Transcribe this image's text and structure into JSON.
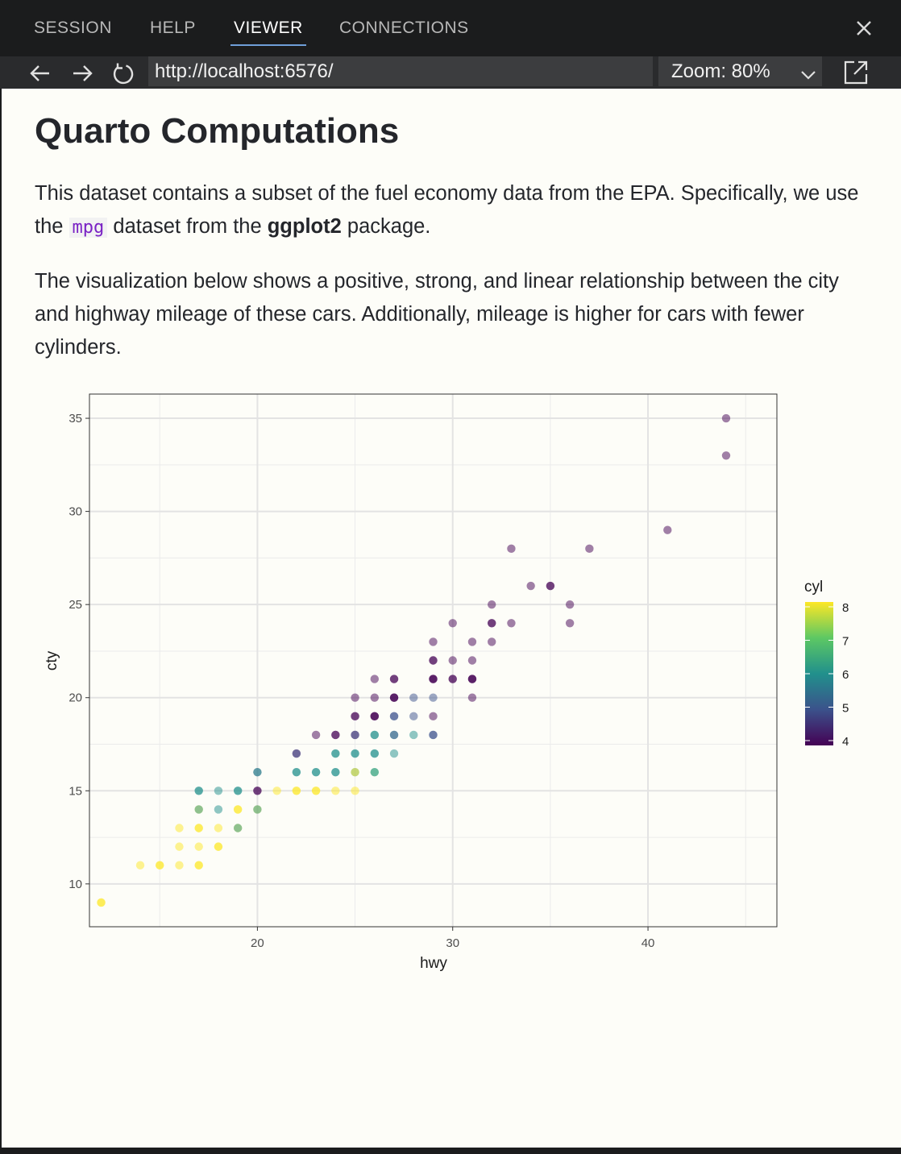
{
  "tabs": [
    {
      "label": "SESSION",
      "active": false
    },
    {
      "label": "HELP",
      "active": false
    },
    {
      "label": "VIEWER",
      "active": true
    },
    {
      "label": "CONNECTIONS",
      "active": false
    }
  ],
  "toolbar": {
    "url": "http://localhost:6576/",
    "zoom": "Zoom: 80%",
    "icons": [
      "back-arrow-icon",
      "forward-arrow-icon",
      "refresh-icon",
      "popout-icon"
    ]
  },
  "page": {
    "title": "Quarto Computations",
    "p1_before": "This dataset contains a subset of the fuel economy data from the EPA. Specifically, we use the ",
    "p1_code": "mpg",
    "p1_mid": " dataset from the ",
    "p1_bold": "ggplot2",
    "p1_after": " package.",
    "p2": "The visualization below shows a positive, strong, and linear relationship between the city and highway mileage of these cars. Additionally, mileage is higher for cars with fewer cylinders."
  },
  "chart_data": {
    "type": "scatter",
    "xlabel": "hwy",
    "ylabel": "cty",
    "xlim": [
      11.4,
      46.6
    ],
    "ylim": [
      7.7,
      36.3
    ],
    "xticks": [
      20,
      30,
      40
    ],
    "yticks": [
      10,
      15,
      20,
      25,
      30,
      35
    ],
    "grid": true,
    "legend": {
      "title": "cyl",
      "ticks": [
        4,
        5,
        6,
        7,
        8
      ],
      "position": "right",
      "colormap": "viridis"
    },
    "colors": {
      "4": "#440154",
      "5": "#3b528b",
      "6": "#21908c",
      "7": "#5dc863",
      "8": "#fde725"
    },
    "points": [
      {
        "x": 44,
        "y": 35,
        "cyl": 4
      },
      {
        "x": 44,
        "y": 33,
        "cyl": 4
      },
      {
        "x": 41,
        "y": 29,
        "cyl": 4
      },
      {
        "x": 33,
        "y": 28,
        "cyl": 4
      },
      {
        "x": 37,
        "y": 28,
        "cyl": 4
      },
      {
        "x": 34,
        "y": 26,
        "cyl": 4
      },
      {
        "x": 35,
        "y": 26,
        "cyl": 4
      },
      {
        "x": 35,
        "y": 26,
        "cyl": 4
      },
      {
        "x": 32,
        "y": 25,
        "cyl": 4
      },
      {
        "x": 36,
        "y": 25,
        "cyl": 4
      },
      {
        "x": 30,
        "y": 24,
        "cyl": 4
      },
      {
        "x": 32,
        "y": 24,
        "cyl": 4
      },
      {
        "x": 32,
        "y": 24,
        "cyl": 4
      },
      {
        "x": 33,
        "y": 24,
        "cyl": 4
      },
      {
        "x": 36,
        "y": 24,
        "cyl": 4
      },
      {
        "x": 29,
        "y": 23,
        "cyl": 4
      },
      {
        "x": 31,
        "y": 23,
        "cyl": 4
      },
      {
        "x": 32,
        "y": 23,
        "cyl": 4
      },
      {
        "x": 29,
        "y": 22,
        "cyl": 4
      },
      {
        "x": 29,
        "y": 22,
        "cyl": 4
      },
      {
        "x": 30,
        "y": 22,
        "cyl": 4
      },
      {
        "x": 31,
        "y": 22,
        "cyl": 4
      },
      {
        "x": 26,
        "y": 21,
        "cyl": 4
      },
      {
        "x": 27,
        "y": 21,
        "cyl": 4
      },
      {
        "x": 27,
        "y": 21,
        "cyl": 4
      },
      {
        "x": 29,
        "y": 21,
        "cyl": 4
      },
      {
        "x": 29,
        "y": 21,
        "cyl": 4
      },
      {
        "x": 29,
        "y": 21,
        "cyl": 4
      },
      {
        "x": 30,
        "y": 21,
        "cyl": 4
      },
      {
        "x": 30,
        "y": 21,
        "cyl": 4
      },
      {
        "x": 31,
        "y": 21,
        "cyl": 4
      },
      {
        "x": 31,
        "y": 21,
        "cyl": 4
      },
      {
        "x": 31,
        "y": 21,
        "cyl": 4
      },
      {
        "x": 25,
        "y": 20,
        "cyl": 4
      },
      {
        "x": 26,
        "y": 20,
        "cyl": 4
      },
      {
        "x": 27,
        "y": 20,
        "cyl": 4
      },
      {
        "x": 27,
        "y": 20,
        "cyl": 4
      },
      {
        "x": 27,
        "y": 20,
        "cyl": 4
      },
      {
        "x": 28,
        "y": 20,
        "cyl": 5
      },
      {
        "x": 29,
        "y": 20,
        "cyl": 5
      },
      {
        "x": 31,
        "y": 20,
        "cyl": 4
      },
      {
        "x": 25,
        "y": 19,
        "cyl": 4
      },
      {
        "x": 25,
        "y": 19,
        "cyl": 4
      },
      {
        "x": 26,
        "y": 19,
        "cyl": 4
      },
      {
        "x": 26,
        "y": 19,
        "cyl": 4
      },
      {
        "x": 26,
        "y": 19,
        "cyl": 4
      },
      {
        "x": 27,
        "y": 19,
        "cyl": 5
      },
      {
        "x": 27,
        "y": 19,
        "cyl": 5
      },
      {
        "x": 28,
        "y": 19,
        "cyl": 5
      },
      {
        "x": 29,
        "y": 19,
        "cyl": 4
      },
      {
        "x": 23,
        "y": 18,
        "cyl": 4
      },
      {
        "x": 24,
        "y": 18,
        "cyl": 4
      },
      {
        "x": 24,
        "y": 18,
        "cyl": 4
      },
      {
        "x": 25,
        "y": 18,
        "cyl": 4
      },
      {
        "x": 25,
        "y": 18,
        "cyl": 5
      },
      {
        "x": 26,
        "y": 18,
        "cyl": 6
      },
      {
        "x": 26,
        "y": 18,
        "cyl": 6
      },
      {
        "x": 27,
        "y": 18,
        "cyl": 6
      },
      {
        "x": 27,
        "y": 18,
        "cyl": 5
      },
      {
        "x": 28,
        "y": 18,
        "cyl": 6
      },
      {
        "x": 29,
        "y": 18,
        "cyl": 5
      },
      {
        "x": 29,
        "y": 18,
        "cyl": 5
      },
      {
        "x": 22,
        "y": 17,
        "cyl": 4
      },
      {
        "x": 22,
        "y": 17,
        "cyl": 5
      },
      {
        "x": 24,
        "y": 17,
        "cyl": 6
      },
      {
        "x": 24,
        "y": 17,
        "cyl": 6
      },
      {
        "x": 25,
        "y": 17,
        "cyl": 6
      },
      {
        "x": 25,
        "y": 17,
        "cyl": 6
      },
      {
        "x": 26,
        "y": 17,
        "cyl": 6
      },
      {
        "x": 26,
        "y": 17,
        "cyl": 6
      },
      {
        "x": 27,
        "y": 17,
        "cyl": 6
      },
      {
        "x": 20,
        "y": 16,
        "cyl": 5
      },
      {
        "x": 20,
        "y": 16,
        "cyl": 6
      },
      {
        "x": 22,
        "y": 16,
        "cyl": 6
      },
      {
        "x": 22,
        "y": 16,
        "cyl": 6
      },
      {
        "x": 23,
        "y": 16,
        "cyl": 6
      },
      {
        "x": 23,
        "y": 16,
        "cyl": 6
      },
      {
        "x": 24,
        "y": 16,
        "cyl": 6
      },
      {
        "x": 24,
        "y": 16,
        "cyl": 6
      },
      {
        "x": 25,
        "y": 16,
        "cyl": 6
      },
      {
        "x": 25,
        "y": 16,
        "cyl": 8
      },
      {
        "x": 26,
        "y": 16,
        "cyl": 7
      },
      {
        "x": 26,
        "y": 16,
        "cyl": 6
      },
      {
        "x": 17,
        "y": 15,
        "cyl": 6
      },
      {
        "x": 17,
        "y": 15,
        "cyl": 6
      },
      {
        "x": 18,
        "y": 15,
        "cyl": 6
      },
      {
        "x": 19,
        "y": 15,
        "cyl": 6
      },
      {
        "x": 19,
        "y": 15,
        "cyl": 6
      },
      {
        "x": 20,
        "y": 15,
        "cyl": 4
      },
      {
        "x": 20,
        "y": 15,
        "cyl": 4
      },
      {
        "x": 21,
        "y": 15,
        "cyl": 8
      },
      {
        "x": 22,
        "y": 15,
        "cyl": 8
      },
      {
        "x": 22,
        "y": 15,
        "cyl": 8
      },
      {
        "x": 23,
        "y": 15,
        "cyl": 8
      },
      {
        "x": 23,
        "y": 15,
        "cyl": 8
      },
      {
        "x": 24,
        "y": 15,
        "cyl": 8
      },
      {
        "x": 25,
        "y": 15,
        "cyl": 8
      },
      {
        "x": 17,
        "y": 14,
        "cyl": 8
      },
      {
        "x": 17,
        "y": 14,
        "cyl": 6
      },
      {
        "x": 18,
        "y": 14,
        "cyl": 6
      },
      {
        "x": 19,
        "y": 14,
        "cyl": 8
      },
      {
        "x": 19,
        "y": 14,
        "cyl": 8
      },
      {
        "x": 20,
        "y": 14,
        "cyl": 8
      },
      {
        "x": 20,
        "y": 14,
        "cyl": 6
      },
      {
        "x": 16,
        "y": 13,
        "cyl": 8
      },
      {
        "x": 17,
        "y": 13,
        "cyl": 8
      },
      {
        "x": 17,
        "y": 13,
        "cyl": 8
      },
      {
        "x": 18,
        "y": 13,
        "cyl": 8
      },
      {
        "x": 19,
        "y": 13,
        "cyl": 8
      },
      {
        "x": 19,
        "y": 13,
        "cyl": 6
      },
      {
        "x": 16,
        "y": 12,
        "cyl": 8
      },
      {
        "x": 17,
        "y": 12,
        "cyl": 8
      },
      {
        "x": 18,
        "y": 12,
        "cyl": 8
      },
      {
        "x": 18,
        "y": 12,
        "cyl": 8
      },
      {
        "x": 14,
        "y": 11,
        "cyl": 8
      },
      {
        "x": 15,
        "y": 11,
        "cyl": 8
      },
      {
        "x": 15,
        "y": 11,
        "cyl": 8
      },
      {
        "x": 16,
        "y": 11,
        "cyl": 8
      },
      {
        "x": 17,
        "y": 11,
        "cyl": 8
      },
      {
        "x": 17,
        "y": 11,
        "cyl": 8
      },
      {
        "x": 12,
        "y": 9,
        "cyl": 8
      },
      {
        "x": 12,
        "y": 9,
        "cyl": 8
      }
    ]
  }
}
